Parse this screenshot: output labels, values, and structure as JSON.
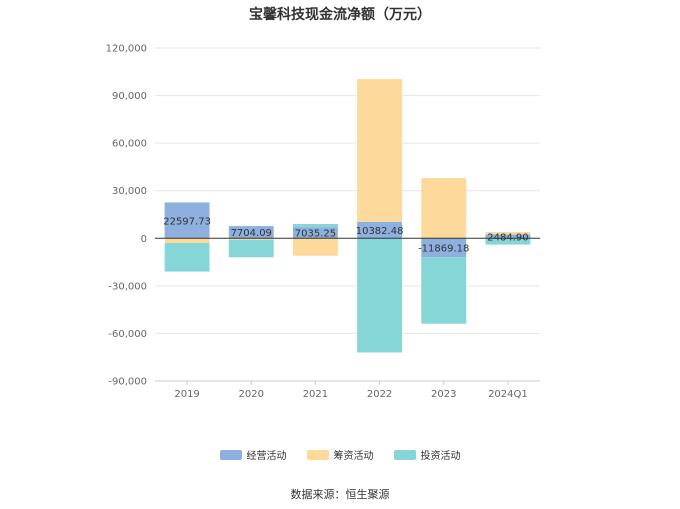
{
  "chart_data": {
    "type": "bar",
    "stacked": true,
    "title": "宝馨科技现金流净额（万元）",
    "categories": [
      "2019",
      "2020",
      "2021",
      "2022",
      "2023",
      "2024Q1"
    ],
    "series": [
      {
        "name": "经营活动",
        "color": "#8eb0de",
        "values": [
          22597.73,
          7704.09,
          7035.25,
          10382.48,
          -11869.18,
          2484.9
        ]
      },
      {
        "name": "筹资活动",
        "color": "#fdd99b",
        "values": [
          -3000,
          -1000,
          -11000,
          90000,
          38000,
          1500
        ]
      },
      {
        "name": "投资活动",
        "color": "#86d6d8",
        "values": [
          -18000,
          -11000,
          2000,
          -72000,
          -42000,
          -4000
        ]
      }
    ],
    "data_labels": [
      "22597.73",
      "7704.09",
      "7035.25",
      "10382.48",
      "-11869.18",
      "2484.90"
    ],
    "yticks": [
      "120,000",
      "90,000",
      "60,000",
      "30,000",
      "0",
      "-30,000",
      "-60,000",
      "-90,000"
    ],
    "ylim": [
      -90000,
      120000
    ],
    "grid": true,
    "legend_position": "bottom"
  },
  "source": "数据来源：恒生聚源"
}
